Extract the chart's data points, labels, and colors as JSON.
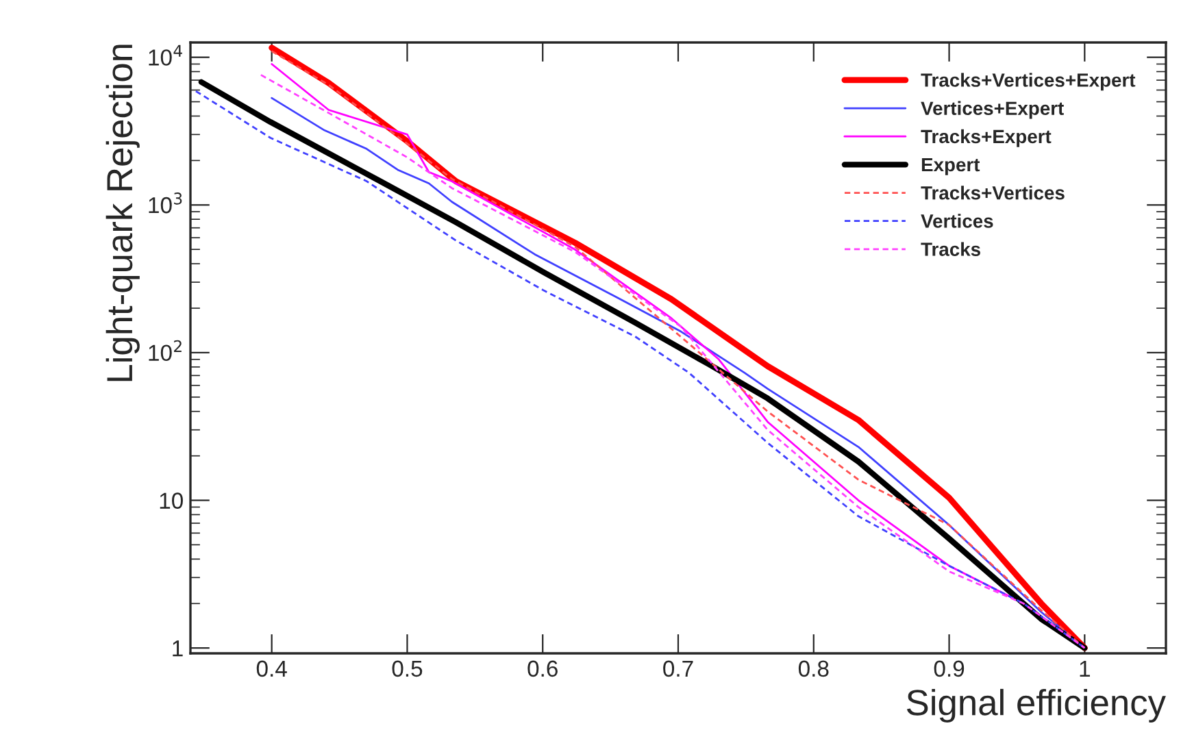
{
  "chart_data": {
    "type": "line",
    "xlabel": "Signal efficiency",
    "ylabel": "Light-quark Rejection",
    "xlim": [
      0.34,
      1.06
    ],
    "xticks": [
      0.4,
      0.5,
      0.6,
      0.7,
      0.8,
      0.9,
      1
    ],
    "ylim": [
      0.92,
      12600
    ],
    "yticks": [
      1,
      10,
      {
        "value": 100,
        "label": "10$^{2}$"
      },
      {
        "value": 1000,
        "label": "10$^{3}$"
      },
      {
        "value": 10000,
        "label": "10$^{4}$"
      }
    ],
    "log": "y",
    "grid": false,
    "legend": "top right",
    "marker": "none",
    "series": [
      {
        "name": "Tracks+Vertices+Expert",
        "color": "#ff0000",
        "line_style": "solid",
        "x": [
          0.4,
          0.442,
          0.5,
          0.536,
          0.624,
          0.695,
          0.766,
          0.833,
          0.9,
          0.968,
          1.0
        ],
        "values": [
          11600,
          6700,
          2700,
          1445,
          554,
          230,
          81,
          35,
          10.4,
          2.0,
          1.0
        ]
      },
      {
        "name": "Vertices+Expert",
        "color": "#4040ff",
        "line_style": "solid",
        "x": [
          0.4,
          0.439,
          0.47,
          0.493,
          0.516,
          0.533,
          0.594,
          0.655,
          0.702,
          0.749,
          0.766,
          0.833,
          0.9,
          0.968,
          1.0
        ],
        "values": [
          5300,
          3200,
          2400,
          1730,
          1400,
          1050,
          464,
          236,
          139,
          73,
          57,
          23,
          6.8,
          1.75,
          1.0
        ]
      },
      {
        "name": "Tracks+Expert",
        "color": "#ff00ff",
        "line_style": "solid",
        "x": [
          0.4,
          0.442,
          0.5,
          0.516,
          0.533,
          0.624,
          0.695,
          0.73,
          0.766,
          0.833,
          0.9,
          0.955,
          1.0
        ],
        "values": [
          9000,
          4400,
          3000,
          1670,
          1445,
          498,
          171,
          90,
          34,
          10,
          3.6,
          2.0,
          1.0
        ]
      },
      {
        "name": "Expert",
        "color": "#000000",
        "line_style": "solid",
        "x": [
          0.348,
          0.399,
          0.48,
          0.536,
          0.601,
          0.668,
          0.722,
          0.766,
          0.833,
          0.9,
          0.968,
          1.0
        ],
        "values": [
          6800,
          3650,
          1450,
          763,
          349,
          160,
          84,
          49,
          18.3,
          5.5,
          1.57,
          1.0
        ]
      },
      {
        "name": "Tracks+Vertices",
        "color": "#ff5050",
        "line_style": "dashed",
        "x": [
          0.4,
          0.442,
          0.5,
          0.533,
          0.624,
          0.702,
          0.766,
          0.833,
          0.9,
          0.968,
          1.0
        ],
        "values": [
          11000,
          6500,
          2600,
          1500,
          520,
          128,
          40,
          13.8,
          6.8,
          1.8,
          1.0
        ]
      },
      {
        "name": "Vertices",
        "color": "#4040ff",
        "line_style": "dashed",
        "x": [
          0.344,
          0.399,
          0.47,
          0.536,
          0.601,
          0.668,
          0.708,
          0.766,
          0.833,
          0.9,
          0.955,
          1.0
        ],
        "values": [
          5900,
          2850,
          1450,
          574,
          263,
          129,
          73,
          24.5,
          7.8,
          3.6,
          2.0,
          1.0
        ]
      },
      {
        "name": "Tracks",
        "color": "#ff40ff",
        "line_style": "dashed",
        "x": [
          0.392,
          0.442,
          0.5,
          0.533,
          0.624,
          0.702,
          0.766,
          0.833,
          0.9,
          0.955,
          1.0
        ],
        "values": [
          7600,
          4200,
          2100,
          1300,
          480,
          150,
          30,
          9.0,
          3.3,
          2.0,
          1.0
        ]
      }
    ]
  }
}
